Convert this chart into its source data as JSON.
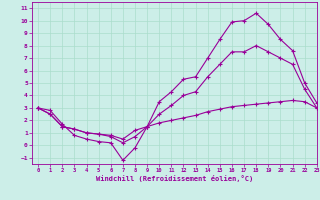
{
  "xlabel": "Windchill (Refroidissement éolien,°C)",
  "xlim": [
    -0.5,
    23
  ],
  "ylim": [
    -1.5,
    11.5
  ],
  "xticks": [
    0,
    1,
    2,
    3,
    4,
    5,
    6,
    7,
    8,
    9,
    10,
    11,
    12,
    13,
    14,
    15,
    16,
    17,
    18,
    19,
    20,
    21,
    22,
    23
  ],
  "yticks": [
    -1,
    0,
    1,
    2,
    3,
    4,
    5,
    6,
    7,
    8,
    9,
    10,
    11
  ],
  "bg_color": "#cceee8",
  "line_color": "#990099",
  "grid_color": "#aaddcc",
  "line1_x": [
    0,
    1,
    2,
    3,
    4,
    5,
    6,
    7,
    8,
    9,
    10,
    11,
    12,
    13,
    14,
    15,
    16,
    17,
    18,
    19,
    20,
    21,
    22,
    23
  ],
  "line1_y": [
    3.0,
    2.8,
    1.7,
    0.8,
    0.5,
    0.3,
    0.2,
    -1.2,
    -0.2,
    1.5,
    3.5,
    4.3,
    5.3,
    5.5,
    7.0,
    8.5,
    9.9,
    10.0,
    10.6,
    9.7,
    8.5,
    7.6,
    5.0,
    3.4
  ],
  "line2_x": [
    0,
    1,
    2,
    3,
    4,
    5,
    6,
    7,
    8,
    9,
    10,
    11,
    12,
    13,
    14,
    15,
    16,
    17,
    18,
    19,
    20,
    21,
    22,
    23
  ],
  "line2_y": [
    3.0,
    2.5,
    1.5,
    1.3,
    1.0,
    0.9,
    0.7,
    0.2,
    0.7,
    1.5,
    2.5,
    3.2,
    4.0,
    4.3,
    5.5,
    6.5,
    7.5,
    7.5,
    8.0,
    7.5,
    7.0,
    6.5,
    4.5,
    3.0
  ],
  "line3_x": [
    0,
    1,
    2,
    3,
    4,
    5,
    6,
    7,
    8,
    9,
    10,
    11,
    12,
    13,
    14,
    15,
    16,
    17,
    18,
    19,
    20,
    21,
    22,
    23
  ],
  "line3_y": [
    3.0,
    2.5,
    1.5,
    1.3,
    1.0,
    0.9,
    0.8,
    0.5,
    1.2,
    1.5,
    1.8,
    2.0,
    2.2,
    2.4,
    2.7,
    2.9,
    3.1,
    3.2,
    3.3,
    3.4,
    3.5,
    3.6,
    3.5,
    3.0
  ]
}
